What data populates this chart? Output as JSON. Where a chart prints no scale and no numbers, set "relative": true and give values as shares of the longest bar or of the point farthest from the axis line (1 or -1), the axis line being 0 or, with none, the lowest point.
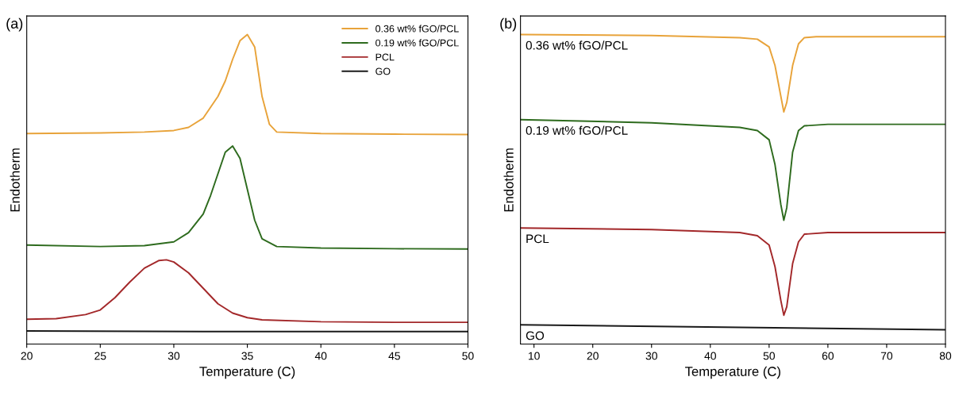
{
  "chart_data": [
    {
      "type": "line",
      "xlabel": "Temperature (C)",
      "ylabel": "Endotherm",
      "annotations": [
        "(a)"
      ],
      "relative": true,
      "xlim": [
        20,
        50
      ],
      "xticks": [
        20,
        25,
        30,
        35,
        40,
        45,
        50
      ],
      "tick_labels": "x",
      "legend": "top right",
      "grid": false,
      "series": [
        {
          "name": "0.36 wt% fGO/PCL",
          "color": "#e8a33a",
          "x": [
            20,
            25,
            28,
            30,
            31,
            32,
            33,
            33.5,
            34,
            34.5,
            35,
            35.5,
            36,
            36.5,
            37,
            40,
            45,
            50
          ],
          "values": [
            0.68,
            0.682,
            0.685,
            0.69,
            0.7,
            0.73,
            0.8,
            0.85,
            0.92,
            0.98,
            1.0,
            0.96,
            0.8,
            0.71,
            0.685,
            0.68,
            0.678,
            0.677
          ]
        },
        {
          "name": "0.19 wt% fGO/PCL",
          "color": "#2e6b1e",
          "x": [
            20,
            25,
            28,
            30,
            31,
            32,
            32.5,
            33,
            33.5,
            34,
            34.5,
            35,
            35.5,
            36,
            37,
            40,
            45,
            50
          ],
          "values": [
            0.32,
            0.315,
            0.318,
            0.33,
            0.36,
            0.42,
            0.48,
            0.55,
            0.62,
            0.64,
            0.6,
            0.5,
            0.4,
            0.34,
            0.315,
            0.31,
            0.308,
            0.307
          ]
        },
        {
          "name": "PCL",
          "color": "#a3282a",
          "x": [
            20,
            22,
            24,
            25,
            26,
            27,
            28,
            29,
            29.5,
            30,
            31,
            32,
            33,
            34,
            35,
            36,
            40,
            45,
            50
          ],
          "values": [
            0.08,
            0.082,
            0.095,
            0.11,
            0.15,
            0.2,
            0.245,
            0.27,
            0.272,
            0.265,
            0.23,
            0.18,
            0.13,
            0.1,
            0.085,
            0.078,
            0.072,
            0.07,
            0.07
          ]
        },
        {
          "name": "GO",
          "color": "#1a1a1a",
          "x": [
            20,
            35,
            50
          ],
          "values": [
            0.042,
            0.04,
            0.04
          ]
        }
      ]
    },
    {
      "type": "line",
      "xlabel": "Temperature (C)",
      "ylabel": "Endotherm",
      "annotations": [
        "(b)"
      ],
      "relative": true,
      "xlim": [
        7.7,
        80
      ],
      "xticks": [
        10,
        20,
        30,
        40,
        50,
        60,
        70,
        80
      ],
      "tick_labels": "x",
      "grid": false,
      "series": [
        {
          "name": "0.36 wt% fGO/PCL",
          "color": "#e8a33a",
          "x": [
            7.7,
            30,
            45,
            48,
            50,
            51,
            52,
            52.5,
            53,
            54,
            55,
            56,
            58,
            80
          ],
          "values": [
            1.0,
            0.997,
            0.99,
            0.985,
            0.96,
            0.9,
            0.8,
            0.75,
            0.78,
            0.9,
            0.97,
            0.99,
            0.993,
            0.993
          ]
        },
        {
          "name": "0.19 wt% fGO/PCL",
          "color": "#2e6b1e",
          "x": [
            7.7,
            30,
            45,
            48,
            50,
            51,
            52,
            52.5,
            53,
            54,
            55,
            56,
            60,
            80
          ],
          "values": [
            0.725,
            0.715,
            0.7,
            0.69,
            0.66,
            0.58,
            0.45,
            0.4,
            0.44,
            0.62,
            0.69,
            0.705,
            0.71,
            0.71
          ]
        },
        {
          "name": "PCL",
          "color": "#a3282a",
          "x": [
            7.7,
            30,
            45,
            48,
            50,
            51,
            52,
            52.5,
            53,
            54,
            55,
            56,
            60,
            80
          ],
          "values": [
            0.375,
            0.37,
            0.36,
            0.35,
            0.32,
            0.25,
            0.14,
            0.093,
            0.12,
            0.26,
            0.33,
            0.355,
            0.36,
            0.36
          ]
        },
        {
          "name": "GO",
          "color": "#1a1a1a",
          "x": [
            7.7,
            80
          ],
          "values": [
            0.062,
            0.046
          ]
        }
      ]
    }
  ]
}
